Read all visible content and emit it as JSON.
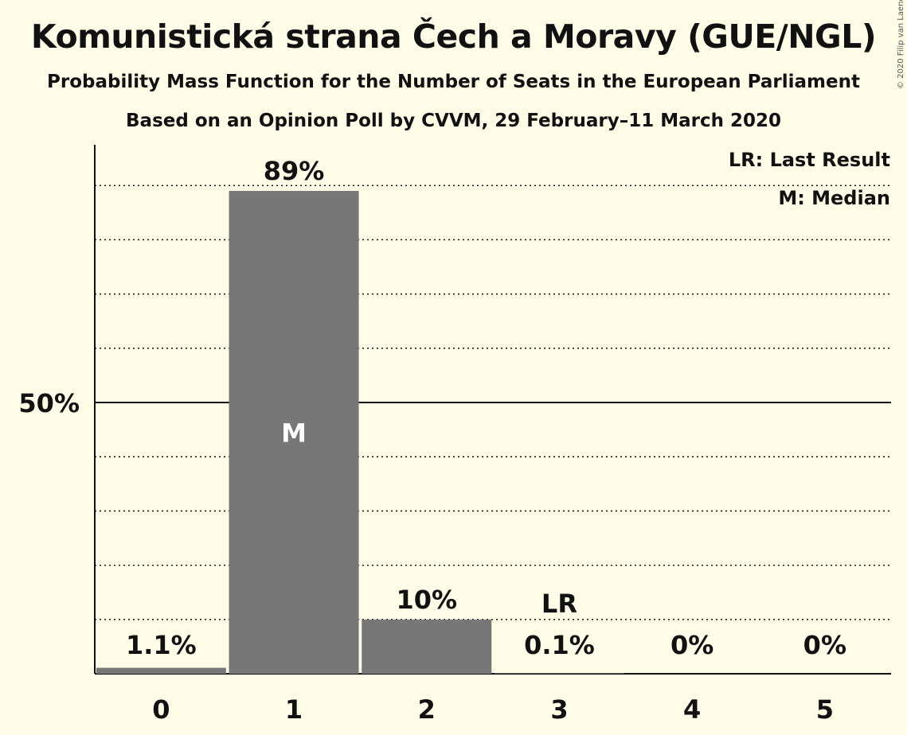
{
  "title": "Komunistická strana Čech a Moravy (GUE/NGL)",
  "subtitle": "Probability Mass Function for the Number of Seats in the European Parliament",
  "subtitle2": "Based on an Opinion Poll by CVVM, 29 February–11 March 2020",
  "copyright": "© 2020 Filip van Laenen",
  "legend": {
    "last_result": "LR: Last Result",
    "median": "M: Median"
  },
  "colors": {
    "background": "#fffde7",
    "bar": "#777777",
    "text": "#111111"
  },
  "chart_data": {
    "type": "bar",
    "categories": [
      "0",
      "1",
      "2",
      "3",
      "4",
      "5"
    ],
    "values": [
      1.1,
      89,
      10,
      0.1,
      0,
      0
    ],
    "value_labels": [
      "1.1%",
      "89%",
      "10%",
      "0.1%",
      "0%",
      "0%"
    ],
    "ytick_label": "50%",
    "ylim": [
      0,
      100
    ],
    "grid": "dotted every 10%, solid at 50%",
    "median_category": "1",
    "median_marker": "M",
    "last_result_category": "3",
    "last_result_marker": "LR",
    "legend_position": "top-right"
  }
}
